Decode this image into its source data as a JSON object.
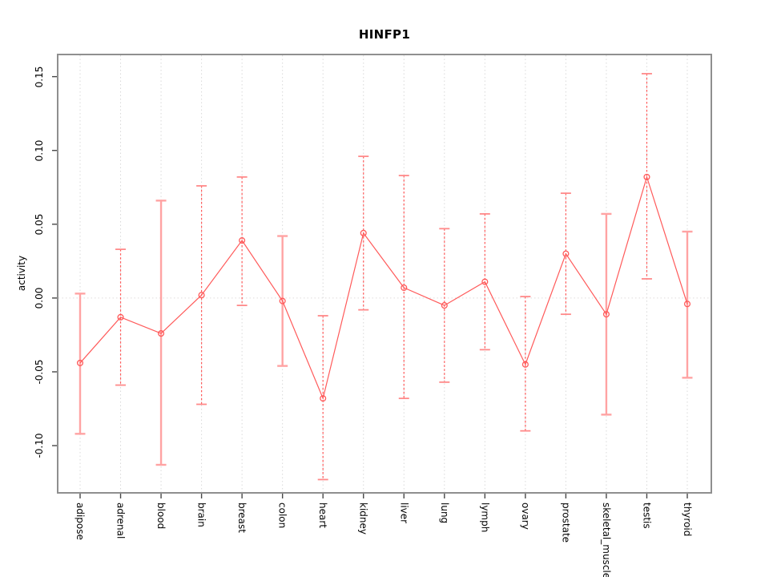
{
  "page": {
    "background": "#ffffff"
  },
  "chart_data": {
    "type": "line",
    "title": "HINFP1",
    "ylabel": "activity",
    "xlabel": "",
    "ylim": [
      -0.132,
      0.165
    ],
    "yticks": [
      0.15,
      0.1,
      0.05,
      0.0,
      -0.05,
      -0.1
    ],
    "ytick_labels": [
      "0.15",
      "0.10",
      "0.05",
      "0.00",
      "-0.05",
      "-0.10"
    ],
    "grid": "dotted vertical gridline at each category; dotted horizontal line at y=0",
    "legend_position": "none",
    "categories": [
      "adipose",
      "adrenal",
      "blood",
      "brain",
      "breast",
      "colon",
      "heart",
      "kidney",
      "liver",
      "lung",
      "lymph",
      "ovary",
      "prostate",
      "skeletal_muscle",
      "testis",
      "thyroid"
    ],
    "series": [
      {
        "name": "HINFP1 activity",
        "values": [
          -0.044,
          -0.013,
          -0.024,
          0.002,
          0.039,
          -0.002,
          -0.068,
          0.044,
          0.007,
          -0.005,
          0.011,
          -0.045,
          0.03,
          -0.011,
          0.082,
          -0.004
        ],
        "ci_low": [
          -0.092,
          -0.059,
          -0.113,
          -0.072,
          -0.005,
          -0.046,
          -0.123,
          -0.008,
          -0.068,
          -0.057,
          -0.035,
          -0.09,
          -0.011,
          -0.079,
          0.013,
          -0.054
        ],
        "ci_high": [
          0.003,
          0.033,
          0.066,
          0.076,
          0.082,
          0.042,
          -0.012,
          0.096,
          0.083,
          0.047,
          0.057,
          0.001,
          0.071,
          0.057,
          0.152,
          0.045
        ]
      }
    ],
    "error_bar_styles": [
      "solid",
      "dashed",
      "solid",
      "dashed",
      "dashed",
      "solid",
      "dashed",
      "dashed",
      "dashed",
      "dashed",
      "dashed",
      "dashed",
      "dashed",
      "solid",
      "dashed",
      "solid"
    ],
    "marker": "open-circle",
    "colors": {
      "line": "#ff5a5a",
      "marker": "#ff5a5a",
      "error_bar_solid": "#ffa3a3",
      "error_bar_dashed": "#ff5a5a",
      "error_bar_cap": "#ff8a8a",
      "grid": "#d9d9d9",
      "zero_line": "#e0dada",
      "axis_box": "#8f8f8f",
      "tick": "#474747",
      "text": "#000000"
    }
  }
}
